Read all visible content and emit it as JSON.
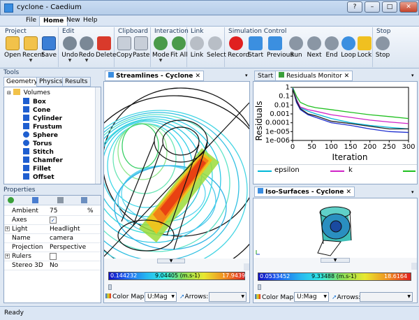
{
  "window": {
    "title": "cyclone - Caedium",
    "buttons": [
      "?",
      "–",
      "□",
      "✕"
    ]
  },
  "menu": [
    "File",
    "Home",
    "New",
    "Help"
  ],
  "ribbon": {
    "groups": [
      {
        "label": "Project",
        "buttons": [
          "Open",
          "Recent",
          "Save"
        ]
      },
      {
        "label": "Edit",
        "buttons": [
          "Undo",
          "Redo",
          "Delete"
        ]
      },
      {
        "label": "Clipboard",
        "buttons": [
          "Copy",
          "Paste"
        ]
      },
      {
        "label": "Interaction",
        "buttons": [
          "Mode",
          "Fit All"
        ]
      },
      {
        "label": "Link",
        "buttons": [
          "Link",
          "Select"
        ]
      },
      {
        "label": "Simulation Control",
        "buttons": [
          "Record",
          "Start",
          "Previous",
          "Run",
          "Next",
          "End",
          "Loop",
          "Lock"
        ]
      },
      {
        "label": "Stop",
        "buttons": [
          "Stop"
        ]
      }
    ]
  },
  "tools": {
    "header": "Tools",
    "tabs": [
      "Geometry",
      "Physics",
      "Results"
    ],
    "root": "Volumes",
    "items": [
      "Box",
      "Cone",
      "Cylinder",
      "Frustum",
      "Sphere",
      "Torus",
      "Stitch",
      "Chamfer",
      "Fillet",
      "Offset"
    ]
  },
  "properties": {
    "header": "Properties",
    "rows": [
      {
        "k": "Ambient",
        "v": "75",
        "u": "%"
      },
      {
        "k": "Axes",
        "v": "✓",
        "u": ""
      },
      {
        "k": "Light",
        "v": "Headlight",
        "u": ""
      },
      {
        "k": "Name",
        "v": "camera",
        "u": ""
      },
      {
        "k": "Projection",
        "v": "Perspective",
        "u": ""
      },
      {
        "k": "Rulers",
        "v": "",
        "u": ""
      },
      {
        "k": "Stereo 3D",
        "v": "No",
        "u": ""
      }
    ]
  },
  "streamlines": {
    "tab": "Streamlines - Cyclone",
    "bar": {
      "min": "0.144232",
      "mid": "9.04405 (m.s-1)",
      "max": "17.9439"
    },
    "colormap_label": "Color Map:",
    "colormap_value": "U:Mag",
    "arrows_label": "Arrows:"
  },
  "residuals": {
    "tabs": [
      "Start",
      "Residuals Monitor"
    ],
    "ylabel": "Residuals",
    "xlabel": "Iteration",
    "legend": [
      "epsilon",
      "k"
    ]
  },
  "chart_data": {
    "type": "line",
    "xlabel": "Iteration",
    "ylabel": "Residuals",
    "log_y": true,
    "xlim": [
      0,
      300
    ],
    "ylim": [
      1e-06,
      1
    ],
    "x_ticks": [
      "0",
      "50",
      "100",
      "150",
      "200",
      "250",
      "300"
    ],
    "y_ticks": [
      "1",
      "0.1",
      "0.01",
      "0.001",
      "0.0001",
      "1e-005",
      "1e-006"
    ],
    "series": [
      {
        "name": "epsilon",
        "color": "#00b8d8",
        "x": [
          0,
          10,
          20,
          40,
          60,
          100,
          150,
          200,
          250,
          300
        ],
        "y": [
          1,
          0.05,
          0.005,
          0.002,
          0.001,
          0.0003,
          0.0001,
          5e-05,
          3e-05,
          2e-05
        ]
      },
      {
        "name": "k",
        "color": "#d024c8",
        "x": [
          0,
          10,
          20,
          40,
          60,
          100,
          150,
          200,
          250,
          300
        ],
        "y": [
          1,
          0.04,
          0.006,
          0.003,
          0.002,
          0.0008,
          0.0004,
          0.0002,
          0.00012,
          8e-05
        ]
      },
      {
        "color": "#20c020",
        "x": [
          0,
          10,
          20,
          40,
          60,
          100,
          150,
          200,
          250,
          300
        ],
        "y": [
          1,
          0.1,
          0.02,
          0.008,
          0.005,
          0.003,
          0.0015,
          0.0008,
          0.0005,
          0.0003
        ]
      },
      {
        "color": "#2030d0",
        "x": [
          0,
          10,
          20,
          40,
          60,
          100,
          150,
          200,
          250,
          300
        ],
        "y": [
          0.8,
          0.02,
          0.003,
          0.0008,
          0.0004,
          0.0001,
          5e-05,
          2e-05,
          1e-05,
          8e-06
        ]
      },
      {
        "color": "#222222",
        "x": [
          0,
          10,
          20,
          40,
          60,
          100,
          150,
          200,
          250,
          300
        ],
        "y": [
          0.6,
          0.03,
          0.004,
          0.001,
          0.0006,
          0.00015,
          8e-05,
          4e-05,
          2e-05,
          2e-05
        ]
      }
    ]
  },
  "isosurfaces": {
    "tab": "Iso-Surfaces - Cyclone",
    "bar": {
      "min": "0.0533452",
      "mid": "9.33488 (m.s-1)",
      "max": "18.6164"
    },
    "colormap_label": "Color Map:",
    "colormap_value": "U:Mag",
    "arrows_label": "Arrows:"
  },
  "status": "Ready"
}
